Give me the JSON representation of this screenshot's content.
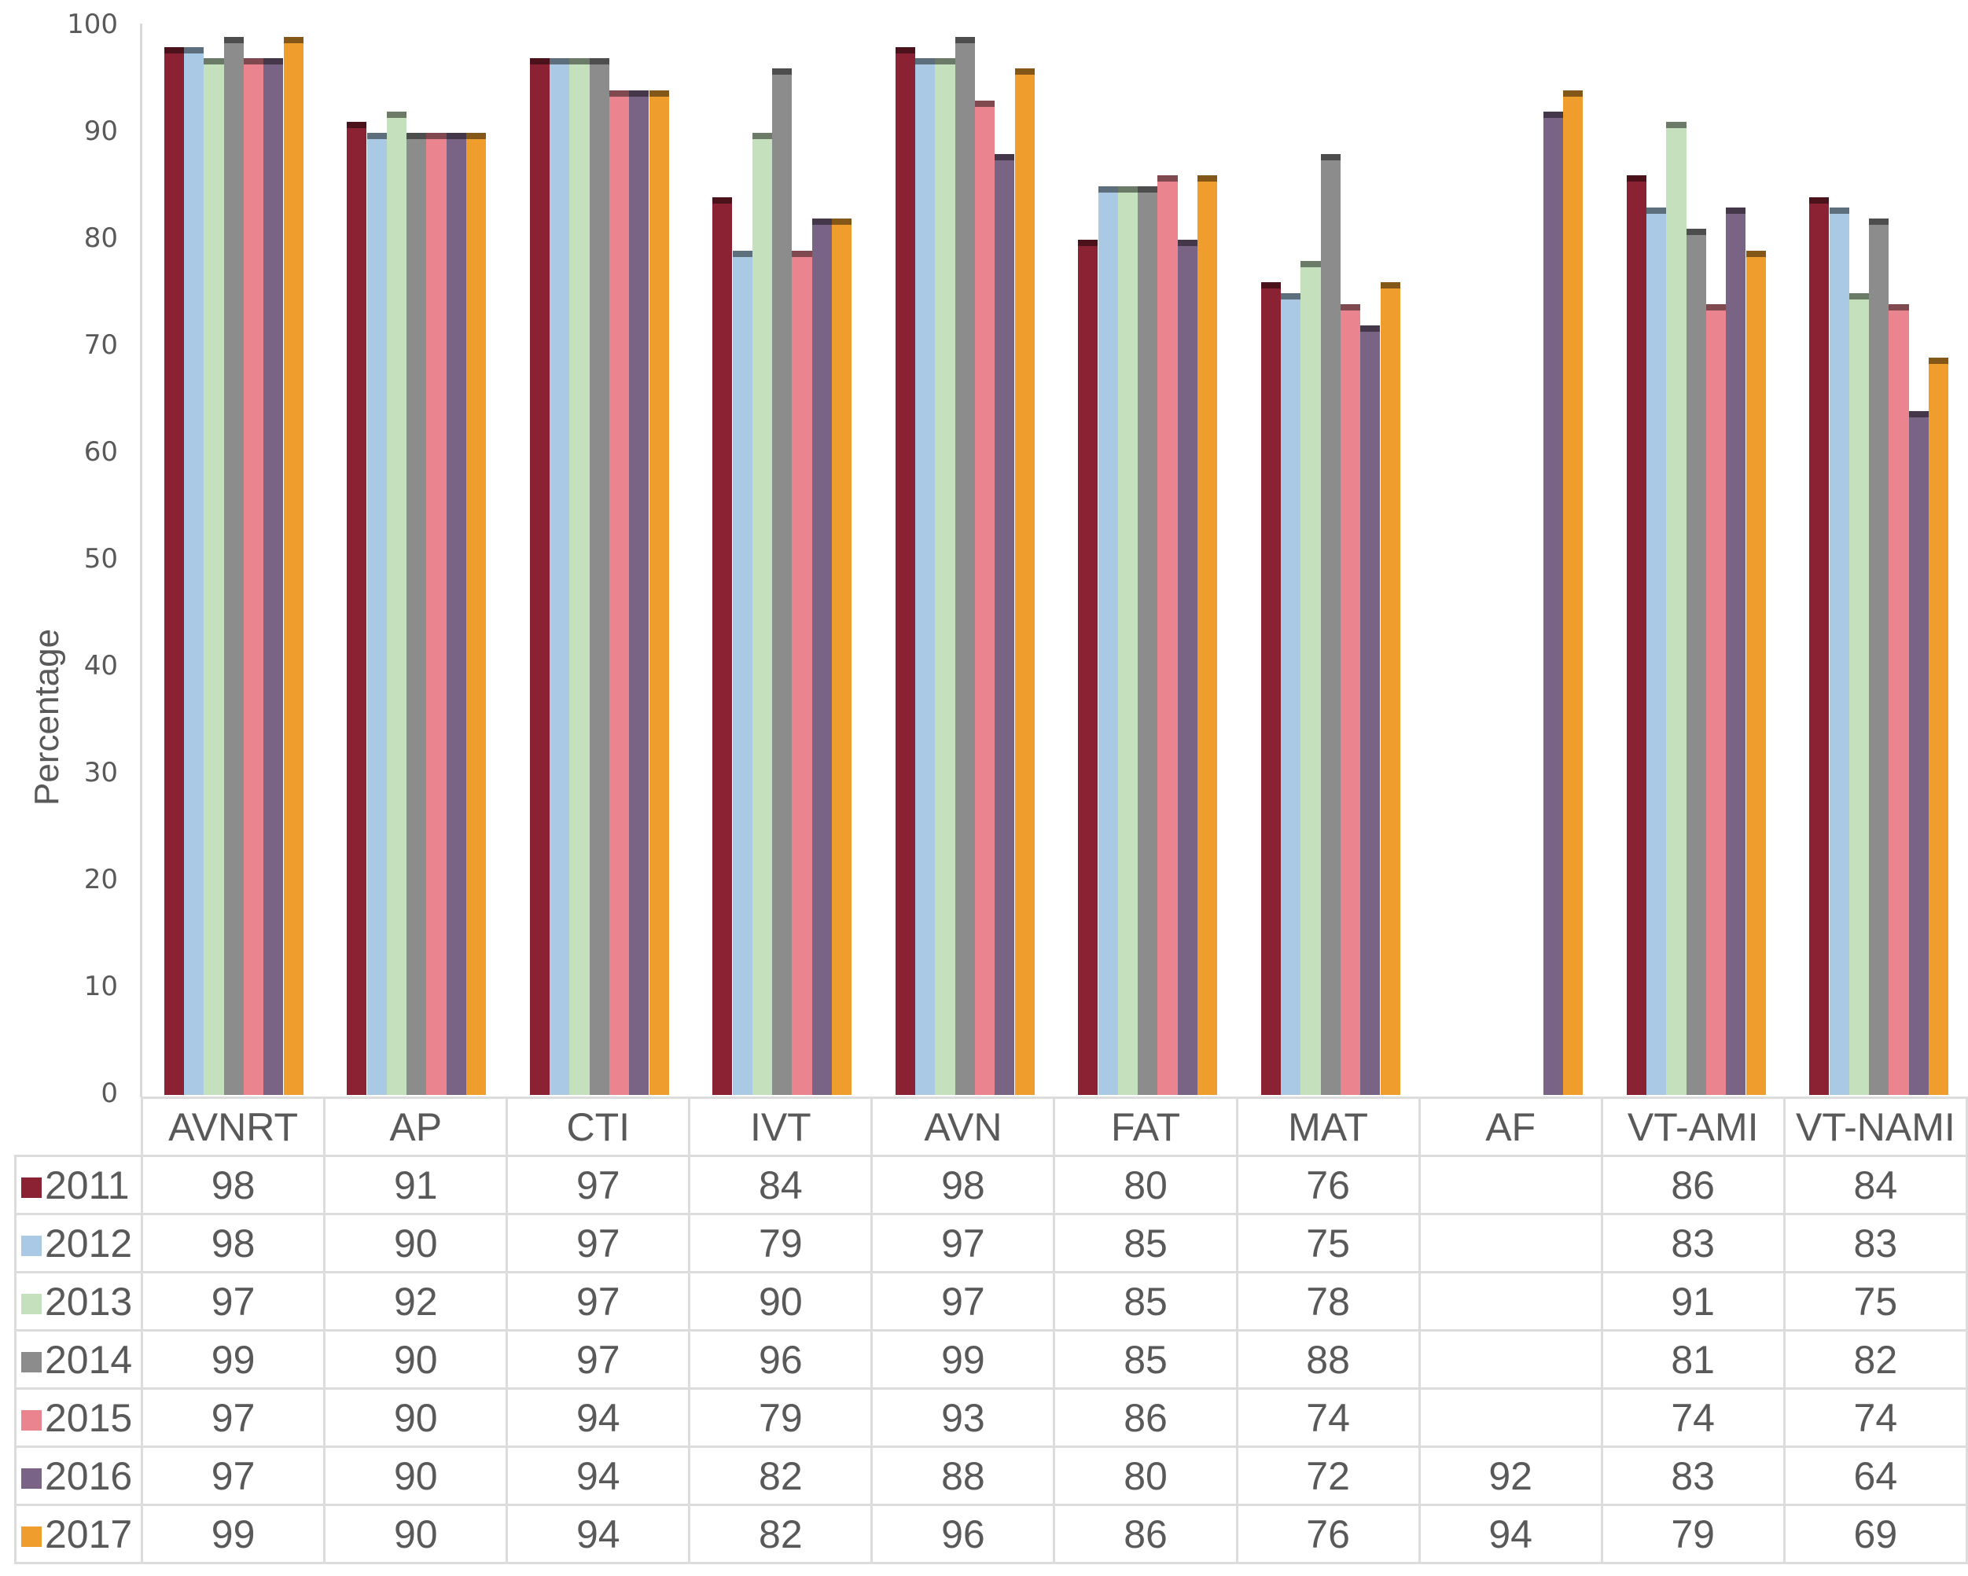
{
  "chart_data": {
    "type": "bar",
    "title": "",
    "xlabel": "",
    "ylabel": "Percentage",
    "ylim": [
      0,
      100
    ],
    "yticks": [
      0,
      10,
      20,
      30,
      40,
      50,
      60,
      70,
      80,
      90,
      100
    ],
    "grid": false,
    "legend_position": "data-table-left",
    "categories": [
      "AVNRT",
      "AP",
      "CTI",
      "IVT",
      "AVN",
      "FAT",
      "MAT",
      "AF",
      "VT-AMI",
      "VT-NAMI"
    ],
    "series": [
      {
        "name": "2011",
        "color": "#8b2234",
        "values": [
          98,
          91,
          97,
          84,
          98,
          80,
          76,
          null,
          86,
          84
        ]
      },
      {
        "name": "2012",
        "color": "#a9c9e4",
        "values": [
          98,
          90,
          97,
          79,
          97,
          85,
          75,
          null,
          83,
          83
        ]
      },
      {
        "name": "2013",
        "color": "#c5e0bd",
        "values": [
          97,
          92,
          97,
          90,
          97,
          85,
          78,
          null,
          91,
          75
        ]
      },
      {
        "name": "2014",
        "color": "#8c8c8c",
        "values": [
          99,
          90,
          97,
          96,
          99,
          85,
          88,
          null,
          81,
          82
        ]
      },
      {
        "name": "2015",
        "color": "#ea8590",
        "values": [
          97,
          90,
          94,
          79,
          93,
          86,
          74,
          null,
          74,
          74
        ]
      },
      {
        "name": "2016",
        "color": "#7a6485",
        "values": [
          97,
          90,
          94,
          82,
          88,
          80,
          72,
          92,
          83,
          64
        ]
      },
      {
        "name": "2017",
        "color": "#ef9e2d",
        "values": [
          99,
          90,
          94,
          82,
          96,
          86,
          76,
          94,
          79,
          69
        ]
      }
    ]
  }
}
